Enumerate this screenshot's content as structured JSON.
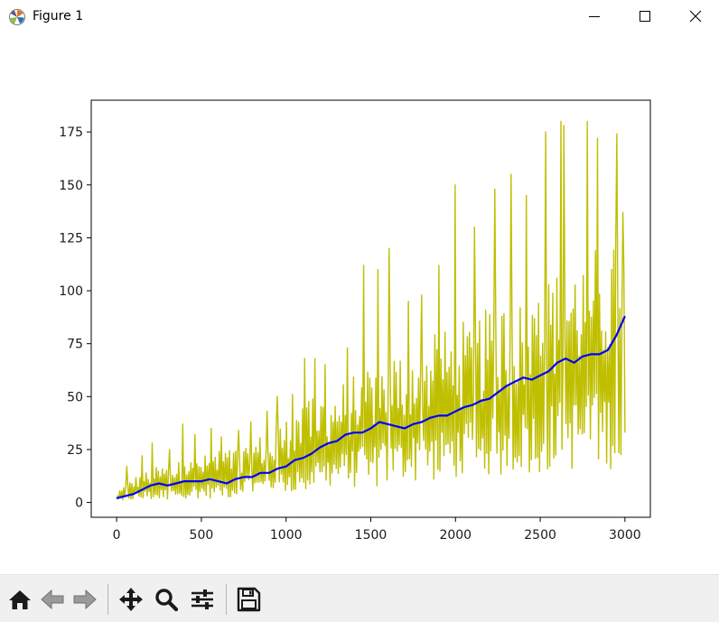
{
  "window": {
    "title": "Figure 1",
    "icons": {
      "app": "matplotlib-logo-icon",
      "minimize": "minimize-icon",
      "maximize": "maximize-icon",
      "close": "close-icon"
    }
  },
  "toolbar": {
    "buttons": [
      {
        "name": "home",
        "icon": "home-icon"
      },
      {
        "name": "back",
        "icon": "arrow-left-icon"
      },
      {
        "name": "forward",
        "icon": "arrow-right-icon"
      },
      {
        "name": "pan",
        "icon": "move-arrows-icon"
      },
      {
        "name": "zoom",
        "icon": "magnifier-icon"
      },
      {
        "name": "configure-subplots",
        "icon": "sliders-icon"
      },
      {
        "name": "save",
        "icon": "floppy-disk-icon"
      }
    ]
  },
  "colors": {
    "raw_series": "#bfbf00",
    "smoothed_series": "#0000ff",
    "axes": "#000000",
    "toolbar_bg": "#f0f0f0"
  },
  "chart_data": {
    "type": "line",
    "title": "",
    "xlabel": "",
    "ylabel": "",
    "xlim": [
      -150,
      3150
    ],
    "ylim": [
      -7,
      190
    ],
    "xticks": [
      0,
      500,
      1000,
      1500,
      2000,
      2500,
      3000
    ],
    "xtick_labels": [
      "0",
      "500",
      "1000",
      "1500",
      "2000",
      "2500",
      "3000"
    ],
    "yticks": [
      0,
      25,
      50,
      75,
      100,
      125,
      150,
      175
    ],
    "ytick_labels": [
      "0",
      "25",
      "50",
      "75",
      "100",
      "125",
      "150",
      "175"
    ],
    "grid": false,
    "legend": "none",
    "series": [
      {
        "style": "raw-envelope",
        "color": "#bfbf00",
        "x": [
          0,
          100,
          200,
          300,
          400,
          500,
          600,
          700,
          800,
          900,
          1000,
          1100,
          1200,
          1300,
          1400,
          1500,
          1600,
          1700,
          1800,
          1900,
          2000,
          2100,
          2200,
          2300,
          2400,
          2500,
          2600,
          2700,
          2800,
          2900,
          3000
        ],
        "lower": [
          1,
          1,
          1,
          1,
          2,
          2,
          2,
          2,
          3,
          3,
          4,
          5,
          6,
          6,
          7,
          7,
          8,
          9,
          10,
          10,
          11,
          12,
          12,
          13,
          14,
          14,
          15,
          15,
          16,
          16,
          14
        ],
        "typical_high": [
          4,
          12,
          16,
          18,
          20,
          22,
          24,
          26,
          30,
          34,
          40,
          46,
          52,
          56,
          60,
          66,
          70,
          74,
          78,
          80,
          84,
          88,
          92,
          96,
          100,
          106,
          110,
          116,
          120,
          124,
          128
        ],
        "spikes": [
          {
            "x": 60,
            "y": 17
          },
          {
            "x": 150,
            "y": 22
          },
          {
            "x": 210,
            "y": 28
          },
          {
            "x": 310,
            "y": 25
          },
          {
            "x": 390,
            "y": 37
          },
          {
            "x": 460,
            "y": 32
          },
          {
            "x": 560,
            "y": 35
          },
          {
            "x": 620,
            "y": 31
          },
          {
            "x": 720,
            "y": 34
          },
          {
            "x": 790,
            "y": 38
          },
          {
            "x": 890,
            "y": 43
          },
          {
            "x": 950,
            "y": 50
          },
          {
            "x": 1040,
            "y": 51
          },
          {
            "x": 1110,
            "y": 68
          },
          {
            "x": 1170,
            "y": 68
          },
          {
            "x": 1230,
            "y": 65
          },
          {
            "x": 1360,
            "y": 73
          },
          {
            "x": 1460,
            "y": 112
          },
          {
            "x": 1540,
            "y": 110
          },
          {
            "x": 1610,
            "y": 120
          },
          {
            "x": 1720,
            "y": 95
          },
          {
            "x": 1800,
            "y": 98
          },
          {
            "x": 1900,
            "y": 112
          },
          {
            "x": 2000,
            "y": 150
          },
          {
            "x": 2110,
            "y": 130
          },
          {
            "x": 2230,
            "y": 148
          },
          {
            "x": 2330,
            "y": 155
          },
          {
            "x": 2420,
            "y": 145
          },
          {
            "x": 2530,
            "y": 175
          },
          {
            "x": 2620,
            "y": 180
          },
          {
            "x": 2640,
            "y": 178
          },
          {
            "x": 2780,
            "y": 180
          },
          {
            "x": 2840,
            "y": 172
          },
          {
            "x": 2950,
            "y": 174
          },
          {
            "x": 2990,
            "y": 137
          }
        ]
      },
      {
        "style": "smoothed-line",
        "color": "#0000ff",
        "x": [
          0,
          50,
          100,
          150,
          200,
          250,
          300,
          350,
          400,
          450,
          500,
          550,
          600,
          650,
          700,
          750,
          800,
          850,
          900,
          950,
          1000,
          1050,
          1100,
          1150,
          1200,
          1250,
          1300,
          1350,
          1400,
          1450,
          1500,
          1550,
          1600,
          1650,
          1700,
          1750,
          1800,
          1850,
          1900,
          1950,
          2000,
          2050,
          2100,
          2150,
          2200,
          2250,
          2300,
          2350,
          2400,
          2450,
          2500,
          2550,
          2600,
          2650,
          2700,
          2750,
          2800,
          2850,
          2900,
          2950,
          3000
        ],
        "y": [
          2,
          3,
          4,
          6,
          8,
          9,
          8,
          9,
          10,
          10,
          10,
          11,
          10,
          9,
          11,
          12,
          12,
          14,
          14,
          16,
          17,
          20,
          21,
          23,
          26,
          28,
          29,
          32,
          33,
          33,
          35,
          38,
          37,
          36,
          35,
          37,
          38,
          40,
          41,
          41,
          43,
          45,
          46,
          48,
          49,
          52,
          55,
          57,
          59,
          58,
          60,
          62,
          66,
          68,
          66,
          69,
          70,
          70,
          72,
          79,
          88
        ]
      }
    ]
  }
}
